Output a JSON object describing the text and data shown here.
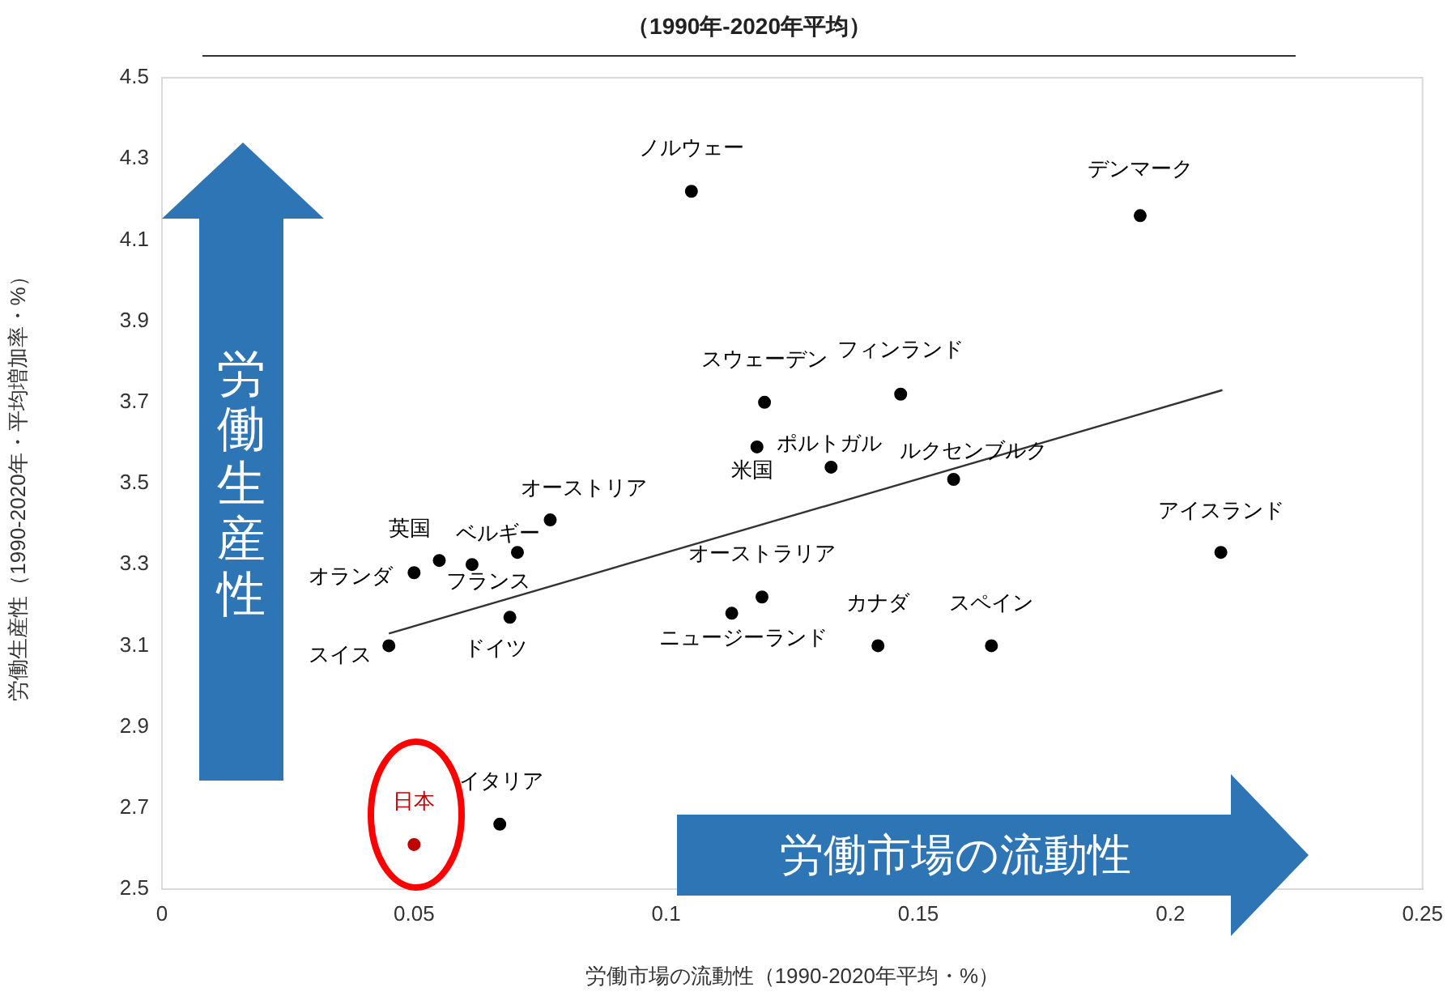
{
  "chart_data": {
    "type": "scatter",
    "title": "（1990年-2020年平均）",
    "xlabel": "労働市場の流動性（1990-2020年平均・%）",
    "ylabel": "労働生産性（1990-2020年・平均増加率・%）",
    "annotations": [
      "労働生産性",
      "労働市場の流動性"
    ],
    "xlim": [
      0,
      0.25
    ],
    "xticks": [
      0,
      0.05,
      0.1,
      0.15,
      0.2,
      0.25
    ],
    "ylim": [
      2.5,
      4.5
    ],
    "yticks": [
      2.5,
      2.7,
      2.9,
      3.1,
      3.3,
      3.5,
      3.7,
      3.9,
      4.1,
      4.3,
      4.5
    ],
    "grid": false,
    "legend": false,
    "marker": "circle",
    "series": [
      {
        "name": "スイス",
        "color": "#000000",
        "x": [
          0.045
        ],
        "values": [
          3.1
        ]
      },
      {
        "name": "オランダ",
        "color": "#000000",
        "x": [
          0.05
        ],
        "values": [
          3.28
        ]
      },
      {
        "name": "英国",
        "color": "#000000",
        "x": [
          0.055
        ],
        "values": [
          3.31
        ]
      },
      {
        "name": "フランス",
        "color": "#000000",
        "x": [
          0.0615
        ],
        "values": [
          3.3
        ]
      },
      {
        "name": "ベルギー",
        "color": "#000000",
        "x": [
          0.0705
        ],
        "values": [
          3.33
        ]
      },
      {
        "name": "オーストリア",
        "color": "#000000",
        "x": [
          0.077
        ],
        "values": [
          3.41
        ]
      },
      {
        "name": "ドイツ",
        "color": "#000000",
        "x": [
          0.069
        ],
        "values": [
          3.17
        ]
      },
      {
        "name": "イタリア",
        "color": "#000000",
        "x": [
          0.067
        ],
        "values": [
          2.66
        ]
      },
      {
        "name": "日本",
        "color": "#c00000",
        "x": [
          0.05
        ],
        "values": [
          2.61
        ]
      },
      {
        "name": "ノルウェー",
        "color": "#000000",
        "x": [
          0.105
        ],
        "values": [
          4.22
        ]
      },
      {
        "name": "スウェーデン",
        "color": "#000000",
        "x": [
          0.1195
        ],
        "values": [
          3.7
        ]
      },
      {
        "name": "フィンランド",
        "color": "#000000",
        "x": [
          0.1465
        ],
        "values": [
          3.72
        ]
      },
      {
        "name": "米国",
        "color": "#000000",
        "x": [
          0.118
        ],
        "values": [
          3.59
        ]
      },
      {
        "name": "ポルトガル",
        "color": "#000000",
        "x": [
          0.1327
        ],
        "values": [
          3.54
        ]
      },
      {
        "name": "ルクセンブルク",
        "color": "#000000",
        "x": [
          0.157
        ],
        "values": [
          3.51
        ]
      },
      {
        "name": "オーストラリア",
        "color": "#000000",
        "x": [
          0.119
        ],
        "values": [
          3.22
        ]
      },
      {
        "name": "ニュージーランド",
        "color": "#000000",
        "x": [
          0.113
        ],
        "values": [
          3.18
        ]
      },
      {
        "name": "カナダ",
        "color": "#000000",
        "x": [
          0.142
        ],
        "values": [
          3.1
        ]
      },
      {
        "name": "スペイン",
        "color": "#000000",
        "x": [
          0.1645
        ],
        "values": [
          3.1
        ]
      },
      {
        "name": "アイスランド",
        "color": "#000000",
        "x": [
          0.21
        ],
        "values": [
          3.33
        ]
      },
      {
        "name": "デンマーク",
        "color": "#000000",
        "x": [
          0.194
        ],
        "values": [
          4.16
        ]
      },
      {
        "type": "line",
        "color": "#333333",
        "x": [
          0.045,
          0.2103
        ],
        "values": [
          3.13,
          3.73
        ],
        "marker": "none"
      }
    ]
  }
}
